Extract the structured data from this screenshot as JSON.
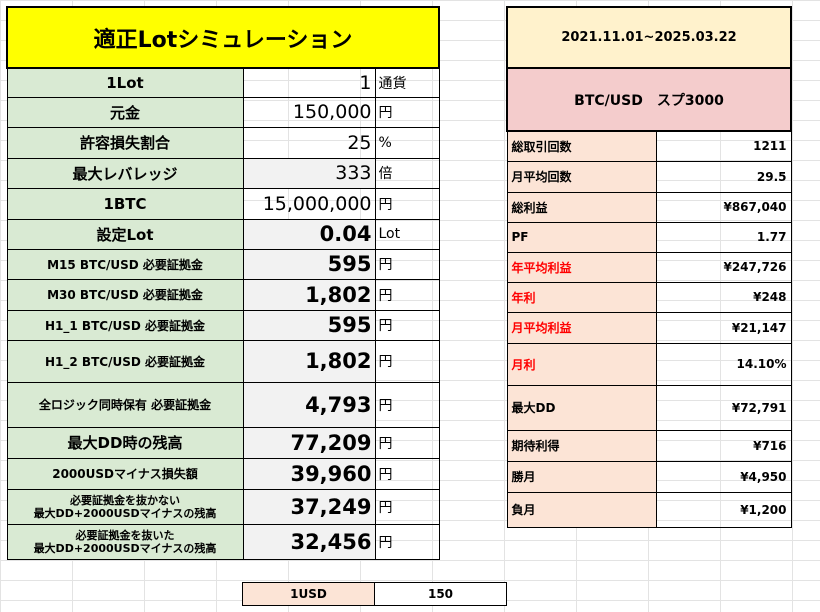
{
  "title": "適正Lotシミュレーション",
  "rows": [
    {
      "label": "1Lot",
      "value": "1",
      "unit": "通貨"
    },
    {
      "label": "元金",
      "value": "150,000",
      "unit": "円"
    },
    {
      "label": "許容損失割合",
      "value": "25",
      "unit": "%"
    },
    {
      "label": "最大レバレッジ",
      "value": "333",
      "unit": "倍"
    },
    {
      "label": "1BTC",
      "value": "15,000,000",
      "unit": "円"
    },
    {
      "label": "設定Lot",
      "value": "0.04",
      "unit": "Lot"
    },
    {
      "label": "M15 BTC/USD 必要証拠金",
      "value": "595",
      "unit": "円"
    },
    {
      "label": "M30 BTC/USD 必要証拠金",
      "value": "1,802",
      "unit": "円"
    },
    {
      "label": "H1_1 BTC/USD 必要証拠金",
      "value": "595",
      "unit": "円"
    },
    {
      "label": "H1_2 BTC/USD 必要証拠金",
      "value": "1,802",
      "unit": "円"
    },
    {
      "label": "全ロジック同時保有 必要証拠金",
      "value": "4,793",
      "unit": "円"
    },
    {
      "label": "最大DD時の残高",
      "value": "77,209",
      "unit": "円"
    },
    {
      "label": "2000USDマイナス損失額",
      "value": "39,960",
      "unit": "円"
    },
    {
      "label": "必要証拠金を抜かない 最大DD+2000USDマイナスの残高",
      "label_line1": "必要証拠金を抜かない",
      "label_line2": "最大DD+2000USDマイナスの残高",
      "value": "37,249",
      "unit": "円"
    },
    {
      "label": "必要証拠金を抜いた 最大DD+2000USDマイナスの残高",
      "label_line1": "必要証拠金を抜いた",
      "label_line2": "最大DD+2000USDマイナスの残高",
      "value": "32,456",
      "unit": "円"
    }
  ],
  "usd": {
    "label": "1USD",
    "value": "150"
  },
  "period": "2021.11.01~2025.03.22",
  "pair": "BTC/USD　スプ3000",
  "stats": [
    {
      "label": "総取引回数",
      "value": "1211"
    },
    {
      "label": "月平均回数",
      "value": "29.5"
    },
    {
      "label": "総利益",
      "value": "¥867,040"
    },
    {
      "label": "PF",
      "value": "1.77"
    },
    {
      "label": "年平均利益",
      "value": "¥247,726"
    },
    {
      "label": "年利",
      "value": "¥248"
    },
    {
      "label": "月平均利益",
      "value": "¥21,147"
    },
    {
      "label": "月利",
      "value": "14.10%"
    },
    {
      "label": "最大DD",
      "value": "¥72,791"
    },
    {
      "label": "期待利得",
      "value": "¥716"
    },
    {
      "label": "勝月",
      "value": "¥4,950"
    },
    {
      "label": "負月",
      "value": "¥1,200"
    }
  ],
  "colors": {
    "title_bg": "#ffff00",
    "label_bg": "#d9ead3",
    "date_bg": "#fff2cc",
    "pair_bg": "#f4cccc",
    "stat_label_bg": "#fce4d6",
    "highlight_text": "#ff0000"
  }
}
